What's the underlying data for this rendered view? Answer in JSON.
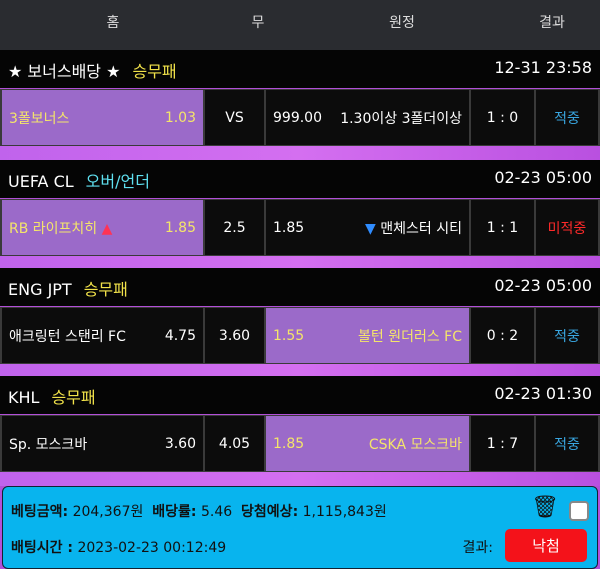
{
  "header": {
    "home": "홈",
    "draw": "무",
    "away": "원정",
    "result": "결과"
  },
  "sections": [
    {
      "league": "★ 보너스배당 ★",
      "market": "승무패",
      "market_color": "#f2e34a",
      "time": "12-31 23:58",
      "home": "3폴보너스",
      "home_odds": "1.03",
      "draw": "VS",
      "away_odds": "999.00",
      "away": "1.30이상 3폴더이상",
      "score": "1 : 0",
      "result": "적중",
      "result_color": "#39a6e0",
      "selected": "home"
    },
    {
      "league": "UEFA CL",
      "market": "오버/언더",
      "market_color": "#5fe0f0",
      "time": "02-23 05:00",
      "home": "RB 라이프치히",
      "home_arrow": "▲",
      "home_odds": "1.85",
      "draw": "2.5",
      "away_odds": "1.85",
      "away_arrow": "▼",
      "away": "맨체스터 시티",
      "score": "1 : 1",
      "result": "미적중",
      "result_color": "#ff2a2a",
      "selected": "home"
    },
    {
      "league": "ENG JPT",
      "market": "승무패",
      "market_color": "#f2e34a",
      "time": "02-23 05:00",
      "home": "애크링턴 스탠리 FC",
      "home_odds": "4.75",
      "draw": "3.60",
      "away_odds": "1.55",
      "away": "볼턴 원더러스 FC",
      "score": "0 : 2",
      "result": "적중",
      "result_color": "#39a6e0",
      "selected": "away"
    },
    {
      "league": "KHL",
      "market": "승무패",
      "market_color": "#f2e34a",
      "time": "02-23 01:30",
      "home": "Sp. 모스크바",
      "home_odds": "3.60",
      "draw": "4.05",
      "away_odds": "1.85",
      "away": "CSKA 모스크바",
      "score": "1 : 7",
      "result": "적중",
      "result_color": "#39a6e0",
      "selected": "away"
    }
  ],
  "footer": {
    "bet_amount_label": "베팅금액:",
    "bet_amount": "204,367원",
    "odds_label": "배당률:",
    "odds": "5.46",
    "expected_label": "당첨예상:",
    "expected": "1,115,843원",
    "bet_time_label": "배팅시간 :",
    "bet_time": "2023-02-23 00:12:49",
    "result_label": "결과:",
    "result_button": "낙첨",
    "checkbox_checked": false
  }
}
